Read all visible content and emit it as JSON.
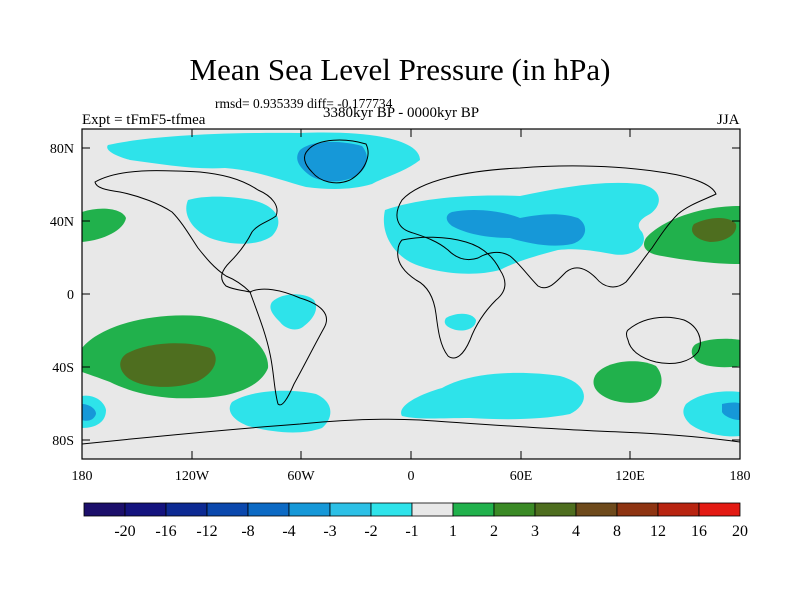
{
  "title": "Mean Sea Level Pressure (in hPa)",
  "stats": "rmsd= 0.935339 diff= -0.177734",
  "experiment": "Expt = tFmF5-tfmea",
  "period": "3380kyr BP - 0000kyr BP",
  "season": "JJA",
  "axes": {
    "x_ticks": [
      "180",
      "120W",
      "60W",
      "0",
      "60E",
      "120E",
      "180"
    ],
    "y_ticks": [
      "80N",
      "40N",
      "0",
      "40S",
      "80S"
    ]
  },
  "colorbar": {
    "labels": [
      "-20",
      "-16",
      "-12",
      "-8",
      "-4",
      "-3",
      "-2",
      "-1",
      "1",
      "2",
      "3",
      "4",
      "8",
      "12",
      "16",
      "20"
    ],
    "colors": [
      "#1c0f6b",
      "#14137e",
      "#0d2a93",
      "#0b48ad",
      "#0c6ac4",
      "#1698d8",
      "#2cc0e6",
      "#2ee3ea",
      "#e8e8e8",
      "#21b14c",
      "#3b8a26",
      "#4e6e1f",
      "#6e4a1c",
      "#8e3412",
      "#b82410",
      "#e31a13"
    ]
  }
}
